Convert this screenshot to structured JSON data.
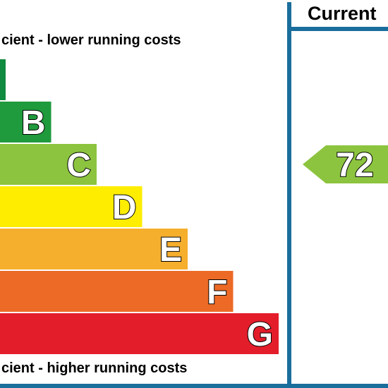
{
  "chart_data": {
    "type": "bar",
    "top_caption": "cient - lower running costs",
    "bottom_caption": "cient - higher running costs",
    "column_header": "Current",
    "bands": [
      {
        "letter": "",
        "color": "#108a3e"
      },
      {
        "letter": "B",
        "color": "#1f9a3c"
      },
      {
        "letter": "C",
        "color": "#8cc43f"
      },
      {
        "letter": "D",
        "color": "#ffed00"
      },
      {
        "letter": "E",
        "color": "#f6ae2d"
      },
      {
        "letter": "F",
        "color": "#ec6a25"
      },
      {
        "letter": "G",
        "color": "#e31d2a"
      }
    ],
    "current_rating": {
      "value": "72",
      "band": "C",
      "color": "#8cc43f"
    },
    "frame_color": "#1a6e9c"
  }
}
